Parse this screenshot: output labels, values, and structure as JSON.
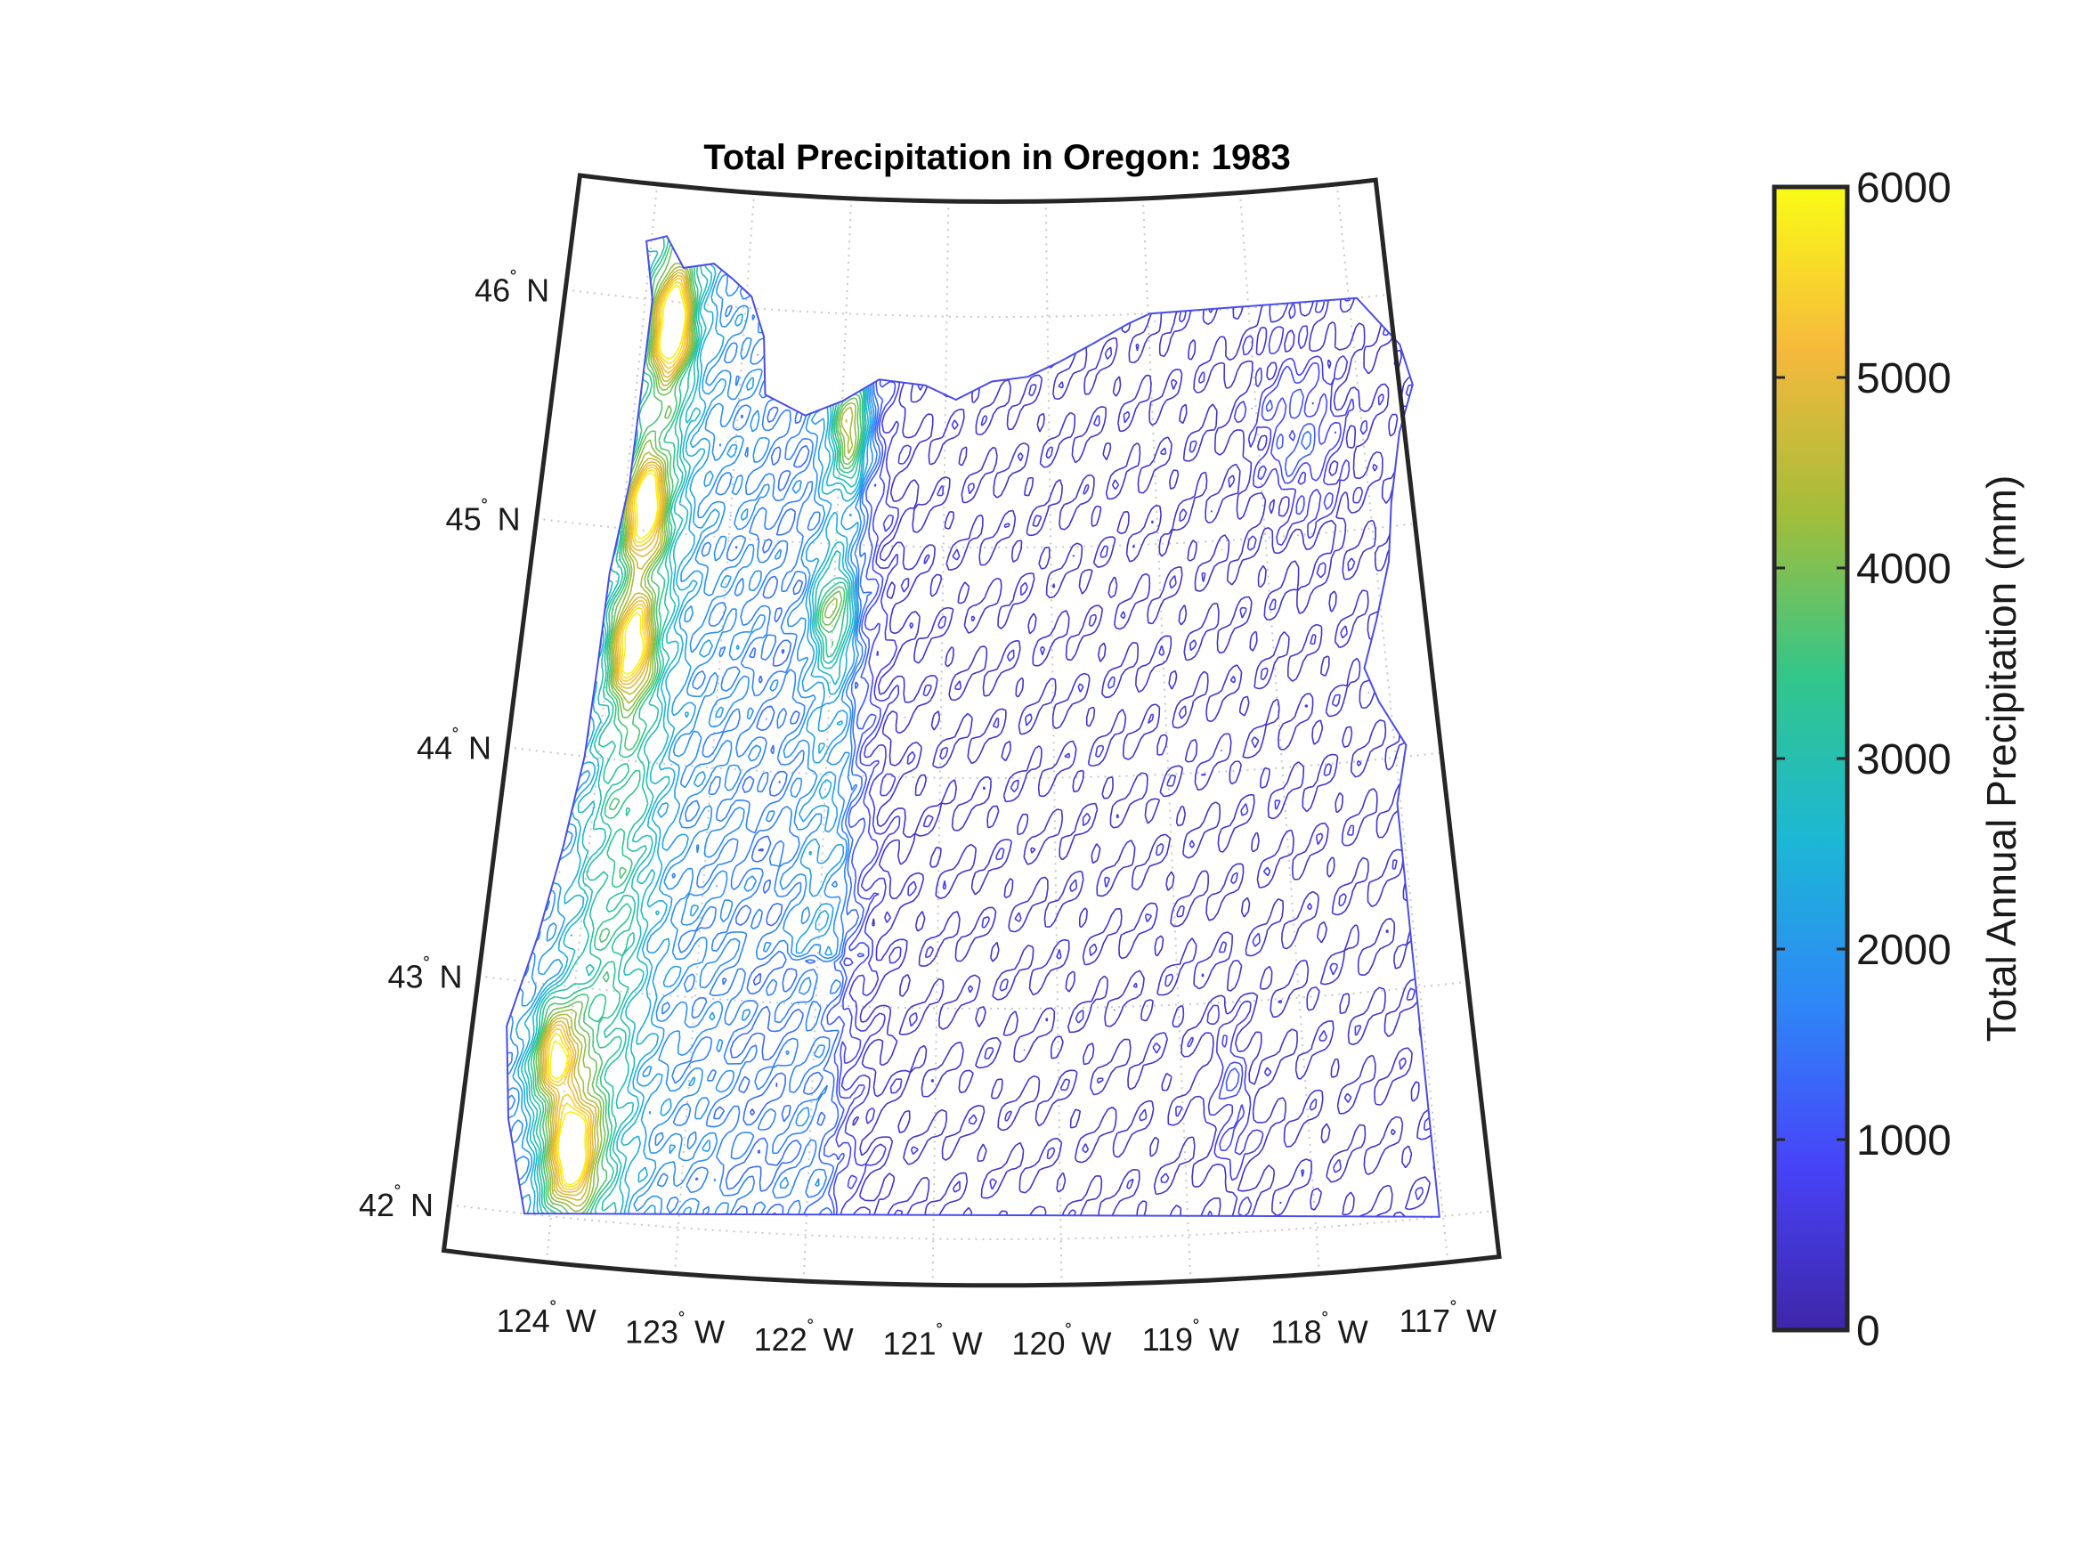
{
  "title": "Total Precipitation in Oregon: 1983",
  "colorbar": {
    "label": "Total Annual Precipitation (mm)",
    "ticks": [
      "0",
      "1000",
      "2000",
      "3000",
      "4000",
      "5000",
      "6000"
    ],
    "range": [
      0,
      6000
    ],
    "colormap": [
      "#3e26a8",
      "#4743f8",
      "#2e87f7",
      "#1cb7d5",
      "#32c68a",
      "#a3bd3a",
      "#f6b93c",
      "#f9fb15"
    ]
  },
  "latitude_ticks": [
    {
      "value": 46,
      "deg": "46",
      "hemi": "N"
    },
    {
      "value": 45,
      "deg": "45",
      "hemi": "N"
    },
    {
      "value": 44,
      "deg": "44",
      "hemi": "N"
    },
    {
      "value": 43,
      "deg": "43",
      "hemi": "N"
    },
    {
      "value": 42,
      "deg": "42",
      "hemi": "N"
    }
  ],
  "longitude_ticks": [
    {
      "value": -124,
      "deg": "124",
      "hemi": "W"
    },
    {
      "value": -123,
      "deg": "123",
      "hemi": "W"
    },
    {
      "value": -122,
      "deg": "122",
      "hemi": "W"
    },
    {
      "value": -121,
      "deg": "121",
      "hemi": "W"
    },
    {
      "value": -120,
      "deg": "120",
      "hemi": "W"
    },
    {
      "value": -119,
      "deg": "119",
      "hemi": "W"
    },
    {
      "value": -118,
      "deg": "118",
      "hemi": "W"
    },
    {
      "value": -117,
      "deg": "117",
      "hemi": "W"
    }
  ],
  "map_extent": {
    "lat": [
      41.8,
      46.5
    ],
    "lon": [
      -124.8,
      -116.6
    ]
  },
  "grid": true,
  "chart_data": {
    "type": "contour",
    "variable": "Total Annual Precipitation",
    "units": "mm",
    "year": 1983,
    "region": "Oregon",
    "range": [
      0,
      6000
    ],
    "high_precipitation_areas": [
      {
        "lat": 45.9,
        "lon": -123.7,
        "value": 5200
      },
      {
        "lat": 45.1,
        "lon": -123.8,
        "value": 4800
      },
      {
        "lat": 44.5,
        "lon": -123.8,
        "value": 4500
      },
      {
        "lat": 42.7,
        "lon": -124.1,
        "value": 5000
      },
      {
        "lat": 42.3,
        "lon": -123.9,
        "value": 5400
      },
      {
        "lat": 45.5,
        "lon": -121.9,
        "value": 3800
      },
      {
        "lat": 44.7,
        "lon": -122.0,
        "value": 3200
      }
    ],
    "low_precipitation_areas": [
      {
        "lat": 43.5,
        "lon": -120.0,
        "value": 300
      },
      {
        "lat": 42.5,
        "lon": -118.5,
        "value": 300
      },
      {
        "lat": 45.5,
        "lon": -120.0,
        "value": 350
      }
    ]
  }
}
